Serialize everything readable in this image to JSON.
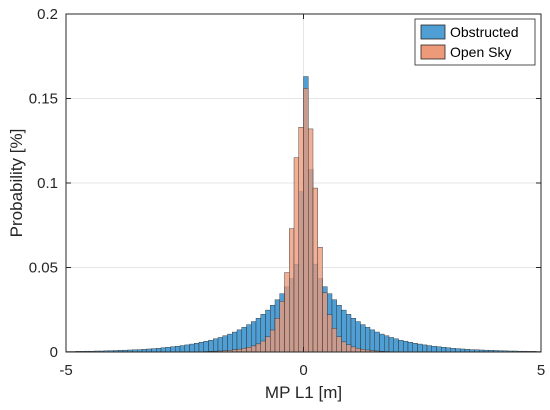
{
  "chart_data": {
    "type": "bar",
    "xlabel": "MP L1 [m]",
    "ylabel": "Probability [%]",
    "xlim": [
      -5,
      5
    ],
    "ylim": [
      0,
      0.2
    ],
    "xticks": [
      -5,
      0,
      5
    ],
    "yticks": [
      0,
      0.05,
      0.1,
      0.15,
      0.2
    ],
    "ytick_labels": [
      "0",
      "0.05",
      "0.1",
      "0.15",
      "0.2"
    ],
    "xtick_labels": [
      "-5",
      "0",
      "5"
    ],
    "grid": true,
    "legend_position": "top-right",
    "bin_width": 0.1,
    "bin_left_edges": [
      -5.0,
      -4.9,
      -4.8,
      -4.7,
      -4.6,
      -4.5,
      -4.4,
      -4.3,
      -4.2,
      -4.1,
      -4.0,
      -3.9,
      -3.8,
      -3.7,
      -3.6,
      -3.5,
      -3.4,
      -3.3,
      -3.2,
      -3.1,
      -3.0,
      -2.9,
      -2.8,
      -2.7,
      -2.6,
      -2.5,
      -2.4,
      -2.3,
      -2.2,
      -2.1,
      -2.0,
      -1.9,
      -1.8,
      -1.7,
      -1.6,
      -1.5,
      -1.4,
      -1.3,
      -1.2,
      -1.1,
      -1.0,
      -0.9,
      -0.8,
      -0.7,
      -0.6,
      -0.5,
      -0.4,
      -0.3,
      -0.2,
      -0.1,
      0.0,
      0.1,
      0.2,
      0.3,
      0.4,
      0.5,
      0.6,
      0.7,
      0.8,
      0.9,
      1.0,
      1.1,
      1.2,
      1.3,
      1.4,
      1.5,
      1.6,
      1.7,
      1.8,
      1.9,
      2.0,
      2.1,
      2.2,
      2.3,
      2.4,
      2.5,
      2.6,
      2.7,
      2.8,
      2.9,
      3.0,
      3.1,
      3.2,
      3.3,
      3.4,
      3.5,
      3.6,
      3.7,
      3.8,
      3.9,
      4.0,
      4.1,
      4.2,
      4.3,
      4.4,
      4.5,
      4.6,
      4.7,
      4.8,
      4.9
    ],
    "series": [
      {
        "name": "Obstructed",
        "color": "#4f9fd4",
        "values": [
          0.0003,
          0.0003,
          0.0004,
          0.0004,
          0.0005,
          0.0005,
          0.0006,
          0.0006,
          0.0007,
          0.0008,
          0.0009,
          0.001,
          0.0011,
          0.0012,
          0.0013,
          0.0014,
          0.0016,
          0.0018,
          0.002,
          0.0022,
          0.0025,
          0.0028,
          0.0031,
          0.0034,
          0.0038,
          0.0042,
          0.0047,
          0.0052,
          0.0058,
          0.0064,
          0.007,
          0.0078,
          0.0086,
          0.0096,
          0.0106,
          0.0118,
          0.0131,
          0.0146,
          0.0162,
          0.018,
          0.02,
          0.0223,
          0.0248,
          0.0277,
          0.0309,
          0.0345,
          0.0386,
          0.0435,
          0.052,
          0.095,
          0.163,
          0.108,
          0.052,
          0.0435,
          0.0386,
          0.0345,
          0.0309,
          0.0277,
          0.0248,
          0.0223,
          0.02,
          0.018,
          0.0162,
          0.0146,
          0.0131,
          0.0118,
          0.0106,
          0.0096,
          0.0086,
          0.0078,
          0.007,
          0.0064,
          0.0058,
          0.0052,
          0.0047,
          0.0042,
          0.0038,
          0.0034,
          0.0031,
          0.0028,
          0.0025,
          0.0022,
          0.002,
          0.0018,
          0.0016,
          0.0014,
          0.0013,
          0.0012,
          0.0011,
          0.001,
          0.0009,
          0.0008,
          0.0007,
          0.0006,
          0.0006,
          0.0005,
          0.0005,
          0.0004,
          0.0004,
          0.0003
        ]
      },
      {
        "name": "Open Sky",
        "color": "#ec9a7a",
        "values": [
          0,
          0,
          0,
          0,
          0,
          0,
          0,
          0,
          0,
          0,
          0,
          0,
          0,
          0,
          0,
          0,
          0,
          0,
          0,
          0,
          0,
          0,
          0,
          0,
          0,
          0.0001,
          0.0001,
          0.0001,
          0.0002,
          0.0003,
          0.0004,
          0.0005,
          0.0006,
          0.0008,
          0.001,
          0.0013,
          0.0017,
          0.0022,
          0.0028,
          0.0036,
          0.0048,
          0.0065,
          0.009,
          0.013,
          0.02,
          0.03,
          0.047,
          0.073,
          0.115,
          0.133,
          0.156,
          0.132,
          0.097,
          0.062,
          0.035,
          0.022,
          0.014,
          0.009,
          0.006,
          0.0043,
          0.003,
          0.0022,
          0.0016,
          0.0012,
          0.0009,
          0.0006,
          0.0004,
          0.0003,
          0.0002,
          0.0001,
          0.0001,
          0.0001,
          0,
          0,
          0,
          0,
          0,
          0,
          0,
          0,
          0,
          0,
          0,
          0,
          0,
          0,
          0,
          0,
          0,
          0,
          0,
          0,
          0,
          0,
          0,
          0,
          0,
          0,
          0,
          0
        ]
      }
    ]
  }
}
